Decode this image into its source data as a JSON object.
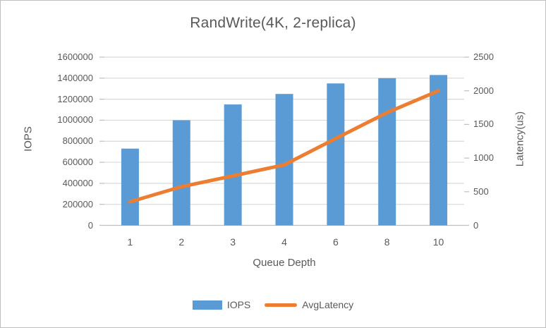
{
  "chart_data": {
    "type": "combo",
    "title": "RandWrite(4K, 2-replica)",
    "categories": [
      "1",
      "2",
      "3",
      "4",
      "6",
      "8",
      "10"
    ],
    "series": [
      {
        "name": "IOPS",
        "type": "bar",
        "axis": "left",
        "color": "#5B9BD5",
        "values": [
          730000,
          1000000,
          1150000,
          1250000,
          1350000,
          1400000,
          1430000
        ]
      },
      {
        "name": "AvgLatency",
        "type": "line",
        "axis": "right",
        "color": "#ED7D31",
        "values": [
          350,
          575,
          735,
          900,
          1290,
          1675,
          2000
        ]
      }
    ],
    "xlabel": "Queue Depth",
    "y_left": {
      "label": "IOPS",
      "min": 0,
      "max": 1600000,
      "step": 200000
    },
    "y_right": {
      "label": "Latency(us)",
      "min": 0,
      "max": 2500,
      "step": 500
    },
    "grid": true,
    "legend_position": "bottom",
    "colors": {
      "text": "#595959",
      "gridline": "#D9D9D9",
      "axis_line": "#BFBFBF",
      "background": "#FFFFFF",
      "border": "#BFBFBF"
    }
  }
}
